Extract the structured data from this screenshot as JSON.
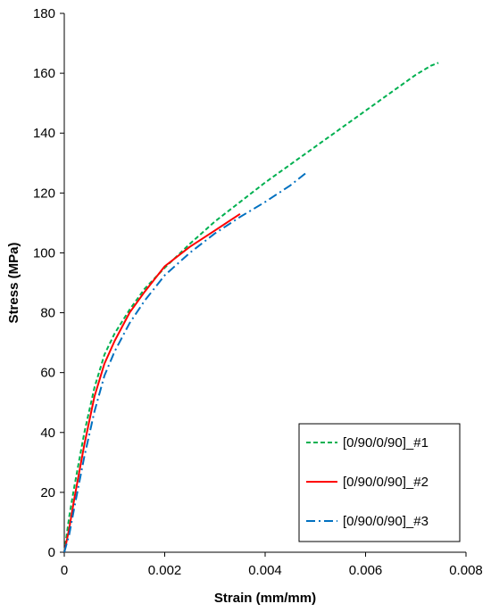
{
  "chart_data": {
    "type": "line",
    "title": "",
    "xlabel": "Strain (mm/mm)",
    "ylabel": "Stress (MPa)",
    "xlim": [
      0,
      0.008
    ],
    "ylim": [
      0,
      180
    ],
    "xticks": [
      0,
      0.002,
      0.004,
      0.006,
      0.008
    ],
    "xtick_labels": [
      "0",
      "0.002",
      "0.004",
      "0.006",
      "0.008"
    ],
    "yticks": [
      0,
      20,
      40,
      60,
      80,
      100,
      120,
      140,
      160,
      180
    ],
    "ytick_labels": [
      "0",
      "20",
      "40",
      "60",
      "80",
      "100",
      "120",
      "140",
      "160",
      "180"
    ],
    "grid": false,
    "legend_position": "bottom-right",
    "series": [
      {
        "name": "[0/90/0/90]_#1",
        "color": "#00B050",
        "dash": "dashed",
        "x": [
          0,
          0.0001,
          0.0002,
          0.0004,
          0.0006,
          0.0008,
          0.001,
          0.0013,
          0.0016,
          0.002,
          0.0025,
          0.003,
          0.0035,
          0.004,
          0.0045,
          0.005,
          0.0055,
          0.006,
          0.0065,
          0.007,
          0.0073,
          0.00745
        ],
        "y": [
          0,
          12,
          22,
          40,
          55,
          66,
          73,
          81,
          88,
          95,
          103,
          110.5,
          117,
          123.5,
          129.5,
          135.5,
          141.5,
          147.5,
          153.5,
          159.5,
          162.5,
          163.5
        ]
      },
      {
        "name": "[0/90/0/90]_#2",
        "color": "#FF0000",
        "dash": "solid",
        "x": [
          0,
          0.0001,
          0.0002,
          0.0004,
          0.0006,
          0.0008,
          0.001,
          0.0013,
          0.0016,
          0.002,
          0.0025,
          0.003,
          0.0035
        ],
        "y": [
          0,
          8,
          18,
          36,
          52,
          63,
          70.5,
          80,
          87,
          95.5,
          102,
          107.5,
          113
        ]
      },
      {
        "name": "[0/90/0/90]_#3",
        "color": "#0070C0",
        "dash": "dashdot",
        "x": [
          0,
          0.0001,
          0.0002,
          0.0004,
          0.0006,
          0.0008,
          0.001,
          0.0013,
          0.0016,
          0.002,
          0.0025,
          0.003,
          0.0035,
          0.004,
          0.0045,
          0.0048
        ],
        "y": [
          0,
          6,
          15,
          32,
          47,
          59,
          67,
          76.5,
          84,
          92.5,
          100,
          106.5,
          112,
          117,
          122.5,
          126.5
        ]
      }
    ]
  }
}
